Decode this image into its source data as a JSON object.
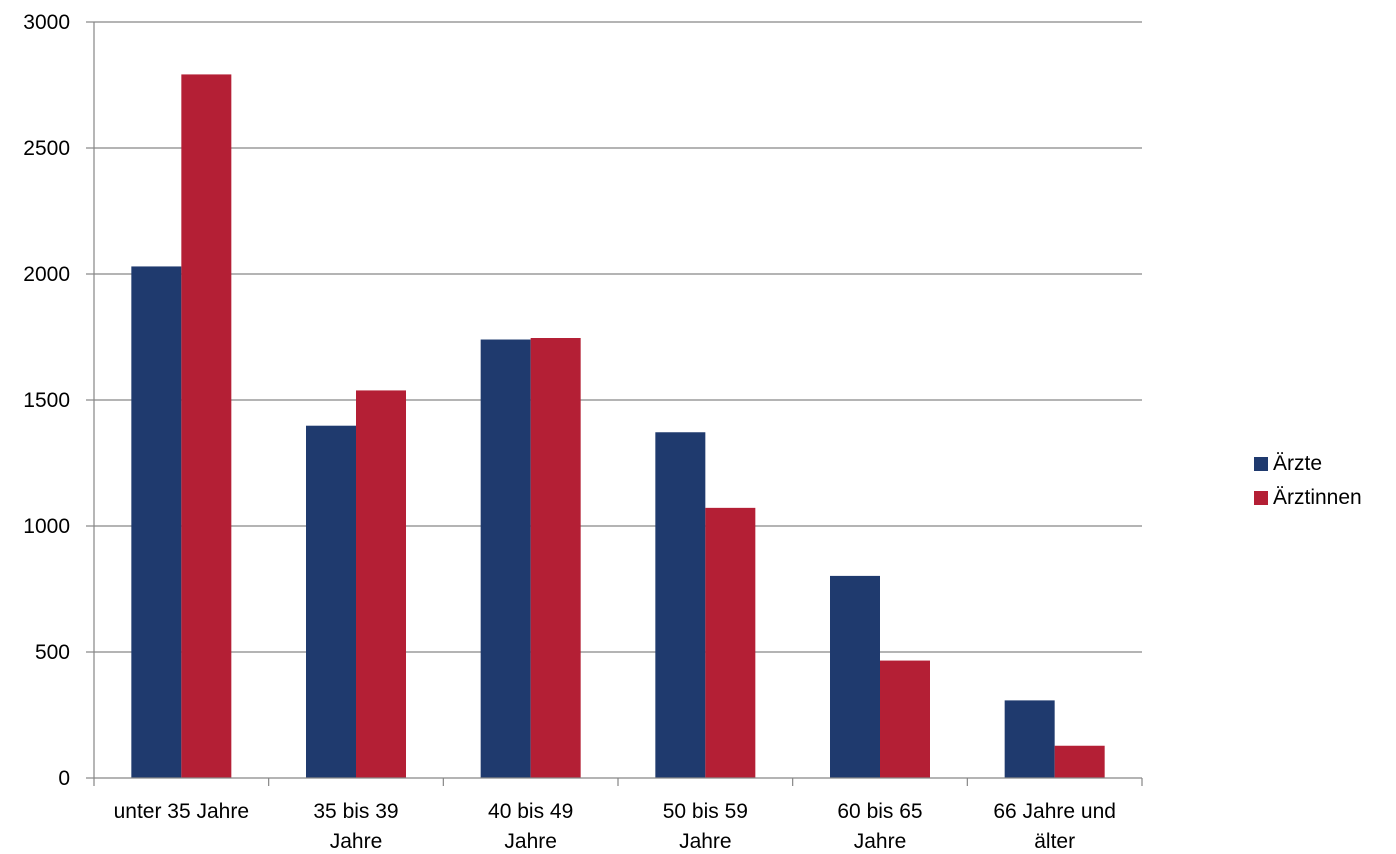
{
  "chart_data": {
    "type": "bar",
    "categories": [
      [
        "unter 35 Jahre"
      ],
      [
        "35 bis 39",
        "Jahre"
      ],
      [
        "40 bis 49",
        "Jahre"
      ],
      [
        "50 bis 59",
        "Jahre"
      ],
      [
        "60 bis 65",
        "Jahre"
      ],
      [
        "66 Jahre und",
        "älter"
      ]
    ],
    "series": [
      {
        "name": "Ärzte",
        "color": "#1f3a6e",
        "values": [
          2030,
          1398,
          1740,
          1372,
          802,
          308
        ]
      },
      {
        "name": "Ärztinnen",
        "color": "#b41f35",
        "values": [
          2792,
          1538,
          1746,
          1072,
          466,
          128
        ]
      }
    ],
    "ylim": [
      0,
      3000
    ],
    "yticks": [
      0,
      500,
      1000,
      1500,
      2000,
      2500,
      3000
    ],
    "grid": true,
    "legend_position": "right",
    "title": "",
    "xlabel": "",
    "ylabel": ""
  }
}
